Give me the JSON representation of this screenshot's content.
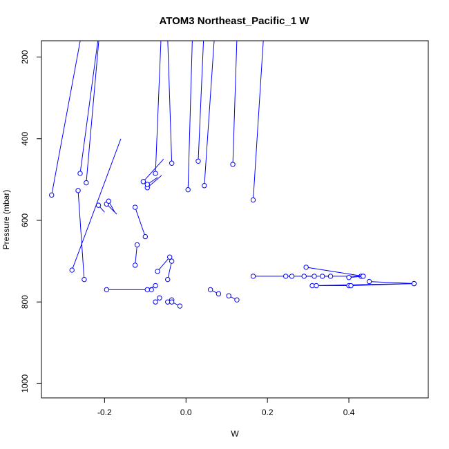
{
  "chart_data": {
    "type": "line",
    "title": "ATOM3 Northeast_Pacific_1 W",
    "xlabel": "W",
    "ylabel": "Pressure (mbar)",
    "xlim": [
      -0.355,
      0.595
    ],
    "ylim": [
      1035,
      160
    ],
    "y_axis_inverted": true,
    "grid": false,
    "legend": "none",
    "x_ticks": [
      -0.2,
      0.0,
      0.2,
      0.4
    ],
    "x_tick_labels": [
      "-0.2",
      "0.0",
      "0.2",
      "0.4"
    ],
    "y_ticks": [
      200,
      400,
      600,
      800,
      1000
    ],
    "y_tick_labels": [
      "200",
      "400",
      "600",
      "800",
      "1000"
    ],
    "color": "#0000ff",
    "marker": "open-circle",
    "series": [
      {
        "points": [
          [
            -0.33,
            538
          ],
          [
            -0.23,
            0
          ]
        ]
      },
      {
        "points": [
          [
            -0.28,
            722
          ],
          [
            -0.16,
            400
          ]
        ]
      },
      {
        "points": [
          [
            -0.26,
            485
          ],
          [
            -0.195,
            0
          ]
        ]
      },
      {
        "points": [
          [
            -0.265,
            527
          ],
          [
            -0.25,
            745
          ]
        ]
      },
      {
        "points": [
          [
            -0.245,
            508
          ],
          [
            -0.2,
            0
          ]
        ]
      },
      {
        "points": [
          [
            -0.215,
            563
          ],
          [
            -0.2,
            580
          ]
        ]
      },
      {
        "points": [
          [
            -0.195,
            560
          ],
          [
            -0.17,
            585
          ]
        ]
      },
      {
        "points": [
          [
            -0.19,
            553
          ],
          [
            -0.175,
            580
          ]
        ]
      },
      {
        "points": [
          [
            -0.125,
            568
          ],
          [
            -0.1,
            640
          ]
        ]
      },
      {
        "points": [
          [
            -0.125,
            710
          ],
          [
            -0.12,
            660
          ]
        ]
      },
      {
        "points": [
          [
            -0.105,
            505
          ],
          [
            -0.055,
            450
          ]
        ]
      },
      {
        "points": [
          [
            -0.095,
            520
          ],
          [
            -0.06,
            490
          ]
        ]
      },
      {
        "points": [
          [
            -0.095,
            512
          ],
          [
            -0.07,
            495
          ]
        ]
      },
      {
        "points": [
          [
            -0.075,
            485
          ],
          [
            -0.055,
            0
          ]
        ]
      },
      {
        "points": [
          [
            -0.035,
            460
          ],
          [
            -0.05,
            0
          ]
        ]
      },
      {
        "points": [
          [
            -0.07,
            725
          ],
          [
            -0.04,
            690
          ]
        ]
      },
      {
        "points": [
          [
            -0.045,
            745
          ],
          [
            -0.035,
            700
          ]
        ]
      },
      {
        "points": [
          [
            0.005,
            525
          ],
          [
            0.02,
            0
          ]
        ]
      },
      {
        "points": [
          [
            0.03,
            455
          ],
          [
            0.05,
            0
          ]
        ]
      },
      {
        "points": [
          [
            0.045,
            515
          ],
          [
            0.08,
            0
          ]
        ]
      },
      {
        "points": [
          [
            0.115,
            463
          ],
          [
            0.13,
            0
          ]
        ]
      },
      {
        "points": [
          [
            0.165,
            550
          ],
          [
            0.2,
            0
          ]
        ]
      },
      {
        "points": [
          [
            -0.195,
            770
          ],
          [
            -0.085,
            770
          ]
        ]
      },
      {
        "points": [
          [
            -0.095,
            770
          ],
          [
            -0.075,
            760
          ]
        ]
      },
      {
        "points": [
          [
            -0.075,
            800
          ],
          [
            -0.065,
            790
          ]
        ]
      },
      {
        "points": [
          [
            -0.045,
            800
          ],
          [
            -0.035,
            795
          ]
        ]
      },
      {
        "points": [
          [
            -0.015,
            810
          ],
          [
            -0.035,
            800
          ]
        ]
      },
      {
        "points": [
          [
            0.08,
            780
          ],
          [
            0.06,
            770
          ]
        ]
      },
      {
        "points": [
          [
            0.125,
            795
          ],
          [
            0.105,
            785
          ]
        ]
      },
      {
        "points": [
          [
            0.165,
            737
          ],
          [
            0.43,
            737
          ]
        ]
      },
      {
        "points": [
          [
            0.245,
            737
          ],
          [
            0.26,
            737
          ]
        ]
      },
      {
        "points": [
          [
            0.29,
            737
          ],
          [
            0.315,
            737
          ]
        ]
      },
      {
        "points": [
          [
            0.335,
            737
          ],
          [
            0.355,
            737
          ]
        ]
      },
      {
        "points": [
          [
            0.435,
            737
          ],
          [
            0.4,
            740
          ]
        ]
      },
      {
        "points": [
          [
            0.295,
            715
          ],
          [
            0.435,
            737
          ]
        ]
      },
      {
        "points": [
          [
            0.31,
            760
          ],
          [
            0.56,
            755
          ]
        ]
      },
      {
        "points": [
          [
            0.32,
            760
          ],
          [
            0.4,
            760
          ]
        ]
      },
      {
        "points": [
          [
            0.405,
            760
          ],
          [
            0.56,
            755
          ]
        ]
      },
      {
        "points": [
          [
            0.56,
            755
          ],
          [
            0.45,
            750
          ]
        ]
      }
    ]
  }
}
